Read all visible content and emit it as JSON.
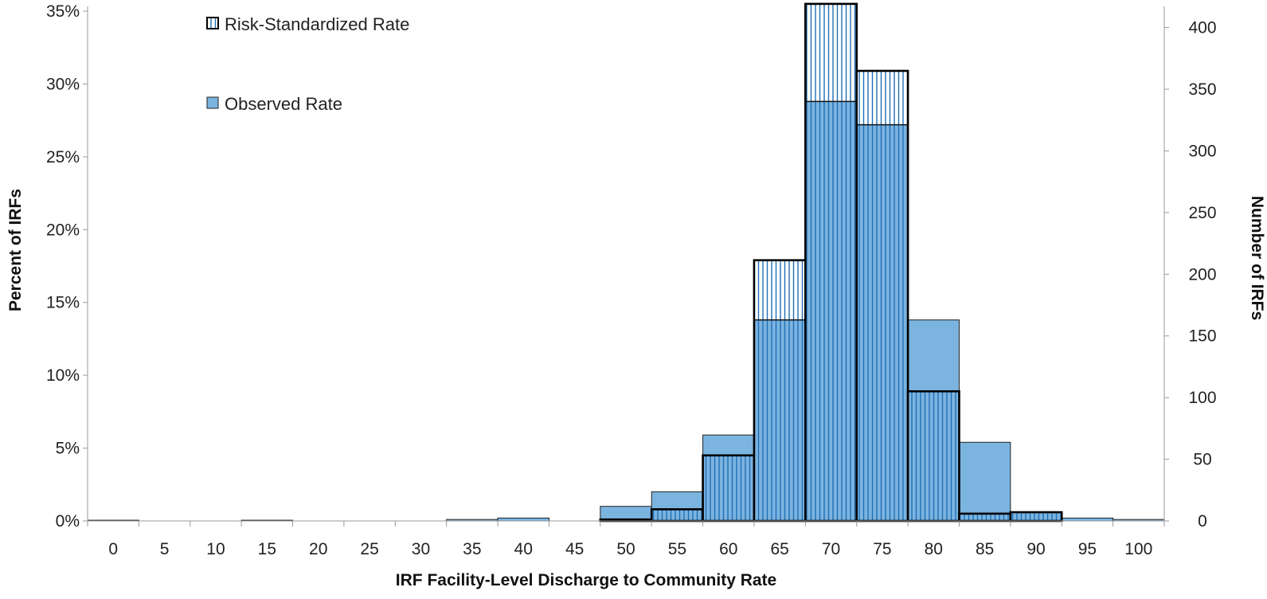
{
  "chart_data": {
    "type": "bar",
    "title": "",
    "xlabel": "IRF Facility-Level Discharge to Community Rate",
    "ylabel": "Percent of IRFs",
    "y2label": "Number of IRFs",
    "categories": [
      "0",
      "5",
      "10",
      "15",
      "20",
      "25",
      "30",
      "35",
      "40",
      "45",
      "50",
      "55",
      "60",
      "65",
      "70",
      "75",
      "80",
      "85",
      "90",
      "95",
      "100"
    ],
    "ylim": [
      0,
      35
    ],
    "yticks": [
      "0%",
      "5%",
      "10%",
      "15%",
      "20%",
      "25%",
      "30%",
      "35%"
    ],
    "y2lim": [
      0,
      400
    ],
    "y2ticks": [
      "0",
      "50",
      "100",
      "150",
      "200",
      "250",
      "300",
      "350",
      "400"
    ],
    "legend_position": "top-left",
    "series": [
      {
        "name": "Observed Rate",
        "color": "#7cb4e0",
        "pattern": "solid",
        "values": [
          0.05,
          0,
          0,
          0.05,
          0,
          0,
          0,
          0.1,
          0.2,
          0,
          1.0,
          2.0,
          5.9,
          13.8,
          28.8,
          27.2,
          13.8,
          5.4,
          0.6,
          0.2,
          0.1
        ]
      },
      {
        "name": "Risk-Standardized Rate",
        "color": "#1f6fb5",
        "pattern": "vertical-stripes",
        "values": [
          0,
          0,
          0,
          0,
          0,
          0,
          0,
          0,
          0,
          0,
          0.1,
          0.8,
          4.5,
          17.9,
          35.5,
          30.9,
          8.9,
          0.5,
          0.6,
          0,
          0
        ]
      }
    ],
    "grid": false
  }
}
